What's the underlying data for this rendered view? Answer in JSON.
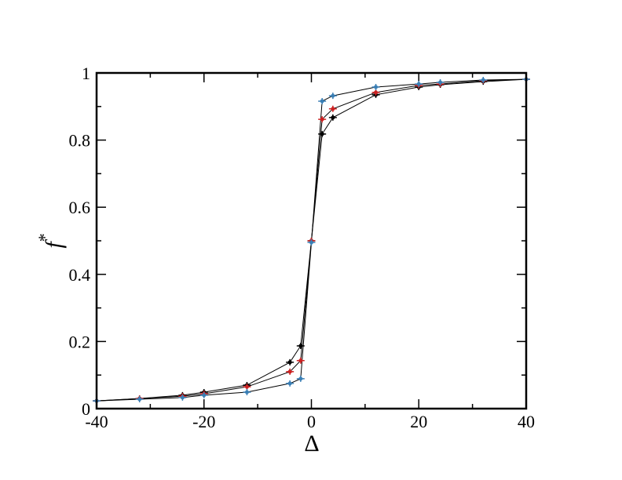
{
  "chart_data": {
    "type": "line",
    "xlabel": "Δ",
    "ylabel": "f",
    "ylabel_sup": "*",
    "x": [
      -40,
      -32,
      -24,
      -20,
      -12,
      -4,
      -2,
      0,
      2,
      4,
      12,
      20,
      24,
      32,
      40
    ],
    "series": [
      {
        "color": "#000000",
        "values": [
          0.023,
          0.03,
          0.04,
          0.049,
          0.07,
          0.138,
          0.187,
          0.5,
          0.818,
          0.867,
          0.935,
          0.958,
          0.965,
          0.974,
          0.981
        ]
      },
      {
        "color": "#cc2222",
        "values": [
          0.023,
          0.03,
          0.037,
          0.044,
          0.065,
          0.11,
          0.143,
          0.5,
          0.862,
          0.893,
          0.942,
          0.963,
          0.967,
          0.977,
          0.981
        ]
      },
      {
        "color": "#3a7fb5",
        "values": [
          0.023,
          0.028,
          0.033,
          0.04,
          0.049,
          0.075,
          0.089,
          0.495,
          0.916,
          0.932,
          0.958,
          0.967,
          0.972,
          0.979,
          0.981
        ]
      }
    ],
    "line_color": "#000000",
    "xlim": [
      -40,
      40
    ],
    "ylim": [
      0,
      1
    ],
    "xticks": [
      -40,
      -20,
      0,
      20,
      40
    ],
    "xminorticks": [
      -30,
      -10,
      10,
      30
    ],
    "yticks": [
      0,
      0.2,
      0.4,
      0.6,
      0.8,
      1
    ],
    "yminorticks": [
      0.1,
      0.3,
      0.5,
      0.7,
      0.9
    ]
  }
}
